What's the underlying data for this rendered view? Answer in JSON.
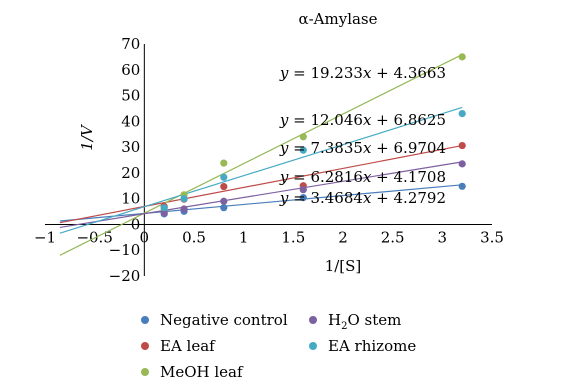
{
  "chart_data": {
    "type": "scatter",
    "title": "α-Amylase",
    "xlabel": "1/[S]",
    "ylabel": "1/V",
    "xlim": [
      -1,
      3.5
    ],
    "ylim": [
      -20,
      70
    ],
    "x_ticks": [
      "−1",
      "−0.5",
      "0",
      "0.5",
      "1",
      "1.5",
      "2",
      "2.5",
      "3",
      "3.5"
    ],
    "y_ticks": [
      "−20",
      "−10",
      "0",
      "10",
      "20",
      "30",
      "40",
      "50",
      "60",
      "70"
    ],
    "grid": false,
    "legend_position": "bottom",
    "series": [
      {
        "name": "Negative control",
        "color": "#4a7ebb",
        "points": [
          [
            0.2,
            4.1
          ],
          [
            0.4,
            5.1
          ],
          [
            0.8,
            6.5
          ],
          [
            1.6,
            10.4
          ],
          [
            3.2,
            14.8
          ]
        ],
        "fit": {
          "slope": 3.4684,
          "intercept": 4.2792
        },
        "equation": "y = 3.4684x + 4.2792"
      },
      {
        "name": "EA leaf",
        "color": "#be4b48",
        "points": [
          [
            0.2,
            7.0
          ],
          [
            0.4,
            9.8
          ],
          [
            0.8,
            14.7
          ],
          [
            1.6,
            15.0
          ],
          [
            3.2,
            30.6
          ]
        ],
        "fit": {
          "slope": 7.3835,
          "intercept": 6.9704
        },
        "equation": "y = 7.3835x + 6.9704"
      },
      {
        "name": "MeOH leaf",
        "color": "#98b954",
        "points": [
          [
            0.2,
            6.0
          ],
          [
            0.4,
            11.5
          ],
          [
            0.8,
            23.8
          ],
          [
            1.6,
            34.0
          ],
          [
            3.2,
            65.0
          ]
        ],
        "fit": {
          "slope": 19.233,
          "intercept": 4.3663
        },
        "equation": "y = 19.233x + 4.3663"
      },
      {
        "name": "H2O stem",
        "color": "#7d60a0",
        "points": [
          [
            0.2,
            4.5
          ],
          [
            0.4,
            6.0
          ],
          [
            0.8,
            9.0
          ],
          [
            1.6,
            13.5
          ],
          [
            3.2,
            23.5
          ]
        ],
        "fit": {
          "slope": 6.2816,
          "intercept": 4.1708
        },
        "equation": "y = 6.2816x + 4.1708"
      },
      {
        "name": "EA rhizome",
        "color": "#46aac5",
        "points": [
          [
            0.2,
            6.5
          ],
          [
            0.4,
            10.0
          ],
          [
            0.8,
            18.3
          ],
          [
            1.6,
            28.8
          ],
          [
            3.2,
            43.0
          ]
        ],
        "fit": {
          "slope": 12.046,
          "intercept": 6.8625
        },
        "equation": "y = 12.046x + 6.8625"
      }
    ]
  }
}
